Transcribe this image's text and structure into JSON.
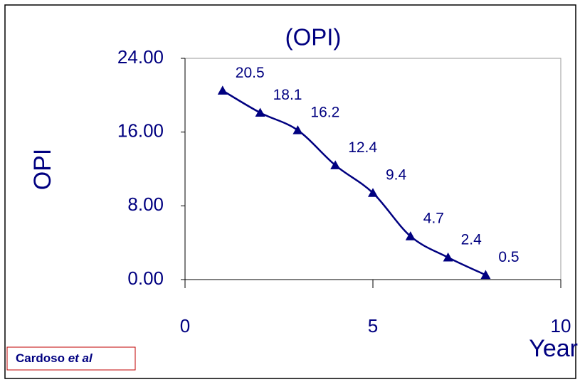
{
  "chart_data": {
    "type": "line",
    "title": "(OPI)",
    "x_label": "Year",
    "y_label": "OPI",
    "annotation": {
      "text": "Cardoso",
      "emphasis": "et al"
    },
    "x": [
      1,
      2,
      3,
      4,
      5,
      6,
      7,
      8
    ],
    "values": [
      20.5,
      18.1,
      16.2,
      12.4,
      9.4,
      4.7,
      2.4,
      0.5
    ],
    "color": "#000080",
    "marker": "triangle",
    "smooth": true,
    "xlim": [
      0,
      10
    ],
    "xticks": [
      0,
      5,
      10
    ],
    "ylim": [
      0,
      24
    ],
    "yticks": [
      {
        "value": 0,
        "label": "0.00"
      },
      {
        "value": 8,
        "label": "8.00"
      },
      {
        "value": 16,
        "label": "16.00"
      },
      {
        "value": 24,
        "label": "24.00"
      }
    ],
    "grid": false
  }
}
